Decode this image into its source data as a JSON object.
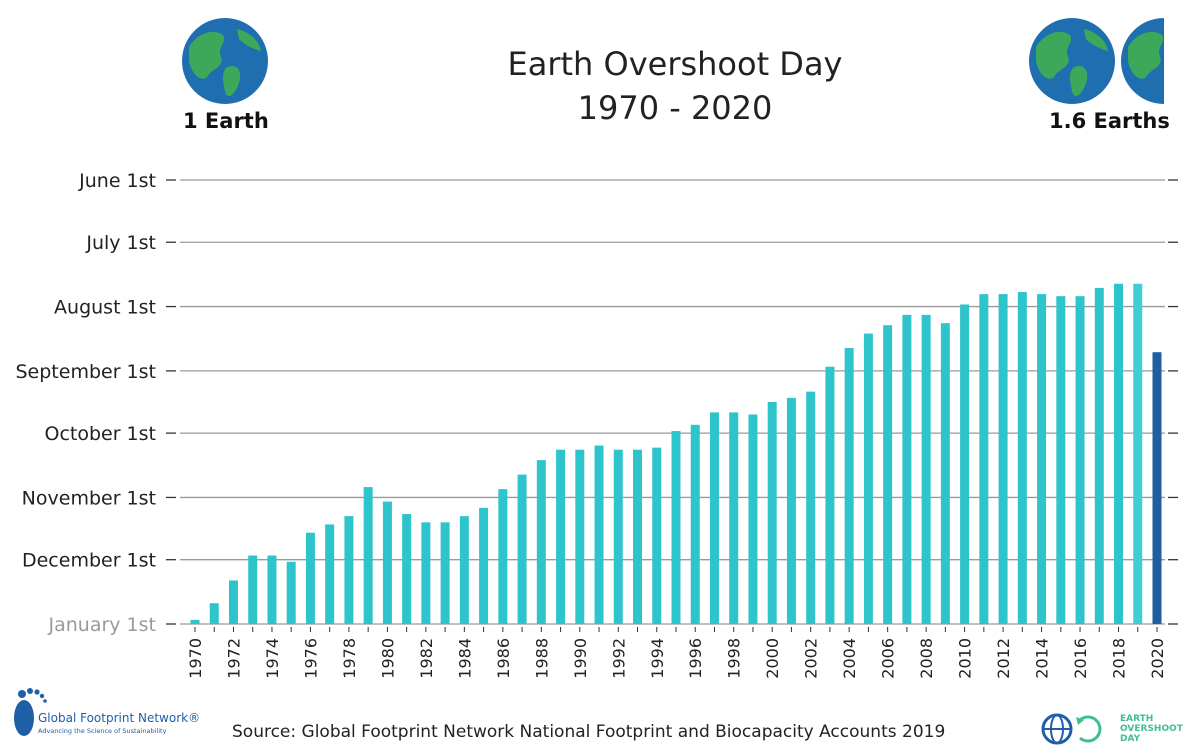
{
  "header": {
    "title_line1": "Earth Overshoot Day",
    "title_line2": "1970 - 2020",
    "left_label": "1 Earth",
    "right_label": "1.6 Earths",
    "left_icon": "globe-icon",
    "right_icon": "globe-icon"
  },
  "footer": {
    "source": "Source: Global Footprint Network National Footprint and Biocapacity Accounts 2019",
    "gfn_name": "Global Footprint Network®",
    "gfn_tagline": "Advancing the Science of Sustainability",
    "eod_logo_text": "EARTH\nOVERSHOOT\nDAY"
  },
  "colors": {
    "bar": "#2ec4cc",
    "bar_2019": "#3fcdd6",
    "bar_2020": "#1f5fa0",
    "grid": "#9a9a9a",
    "january_label": "#9a9a9a"
  },
  "chart_data": {
    "type": "bar",
    "title": "Earth Overshoot Day 1970 - 2020",
    "xlabel": "",
    "ylabel": "",
    "y_axis_note": "date axis, reversed: January 1st at bottom, June 1st at top; values are day-of-year of Overshoot Day",
    "yticks": [
      {
        "label": "June 1st",
        "day": 152
      },
      {
        "label": "July 1st",
        "day": 182
      },
      {
        "label": "August 1st",
        "day": 213
      },
      {
        "label": "September 1st",
        "day": 244
      },
      {
        "label": "October 1st",
        "day": 274
      },
      {
        "label": "November 1st",
        "day": 305
      },
      {
        "label": "December 1st",
        "day": 335
      },
      {
        "label": "January 1st",
        "day": 366
      }
    ],
    "categories": [
      "1970",
      "1971",
      "1972",
      "1973",
      "1974",
      "1975",
      "1976",
      "1977",
      "1978",
      "1979",
      "1980",
      "1981",
      "1982",
      "1983",
      "1984",
      "1985",
      "1986",
      "1987",
      "1988",
      "1989",
      "1990",
      "1991",
      "1992",
      "1993",
      "1994",
      "1995",
      "1996",
      "1997",
      "1998",
      "1999",
      "2000",
      "2001",
      "2002",
      "2003",
      "2004",
      "2005",
      "2006",
      "2007",
      "2008",
      "2009",
      "2010",
      "2011",
      "2012",
      "2013",
      "2014",
      "2015",
      "2016",
      "2017",
      "2018",
      "2019",
      "2020"
    ],
    "xtick_labels": [
      "1970",
      "1972",
      "1974",
      "1976",
      "1978",
      "1980",
      "1982",
      "1984",
      "1986",
      "1988",
      "1990",
      "1992",
      "1994",
      "1996",
      "1998",
      "2000",
      "2002",
      "2004",
      "2006",
      "2008",
      "2010",
      "2012",
      "2014",
      "2016",
      "2018",
      "2020"
    ],
    "values": [
      364,
      356,
      345,
      333,
      333,
      336,
      322,
      318,
      314,
      300,
      307,
      313,
      317,
      317,
      314,
      310,
      301,
      294,
      287,
      282,
      282,
      280,
      282,
      282,
      281,
      273,
      270,
      264,
      264,
      265,
      259,
      257,
      254,
      242,
      233,
      226,
      222,
      217,
      217,
      221,
      212,
      207,
      207,
      206,
      207,
      208,
      208,
      204,
      202,
      202,
      235
    ],
    "grid": true,
    "legend": "none"
  }
}
